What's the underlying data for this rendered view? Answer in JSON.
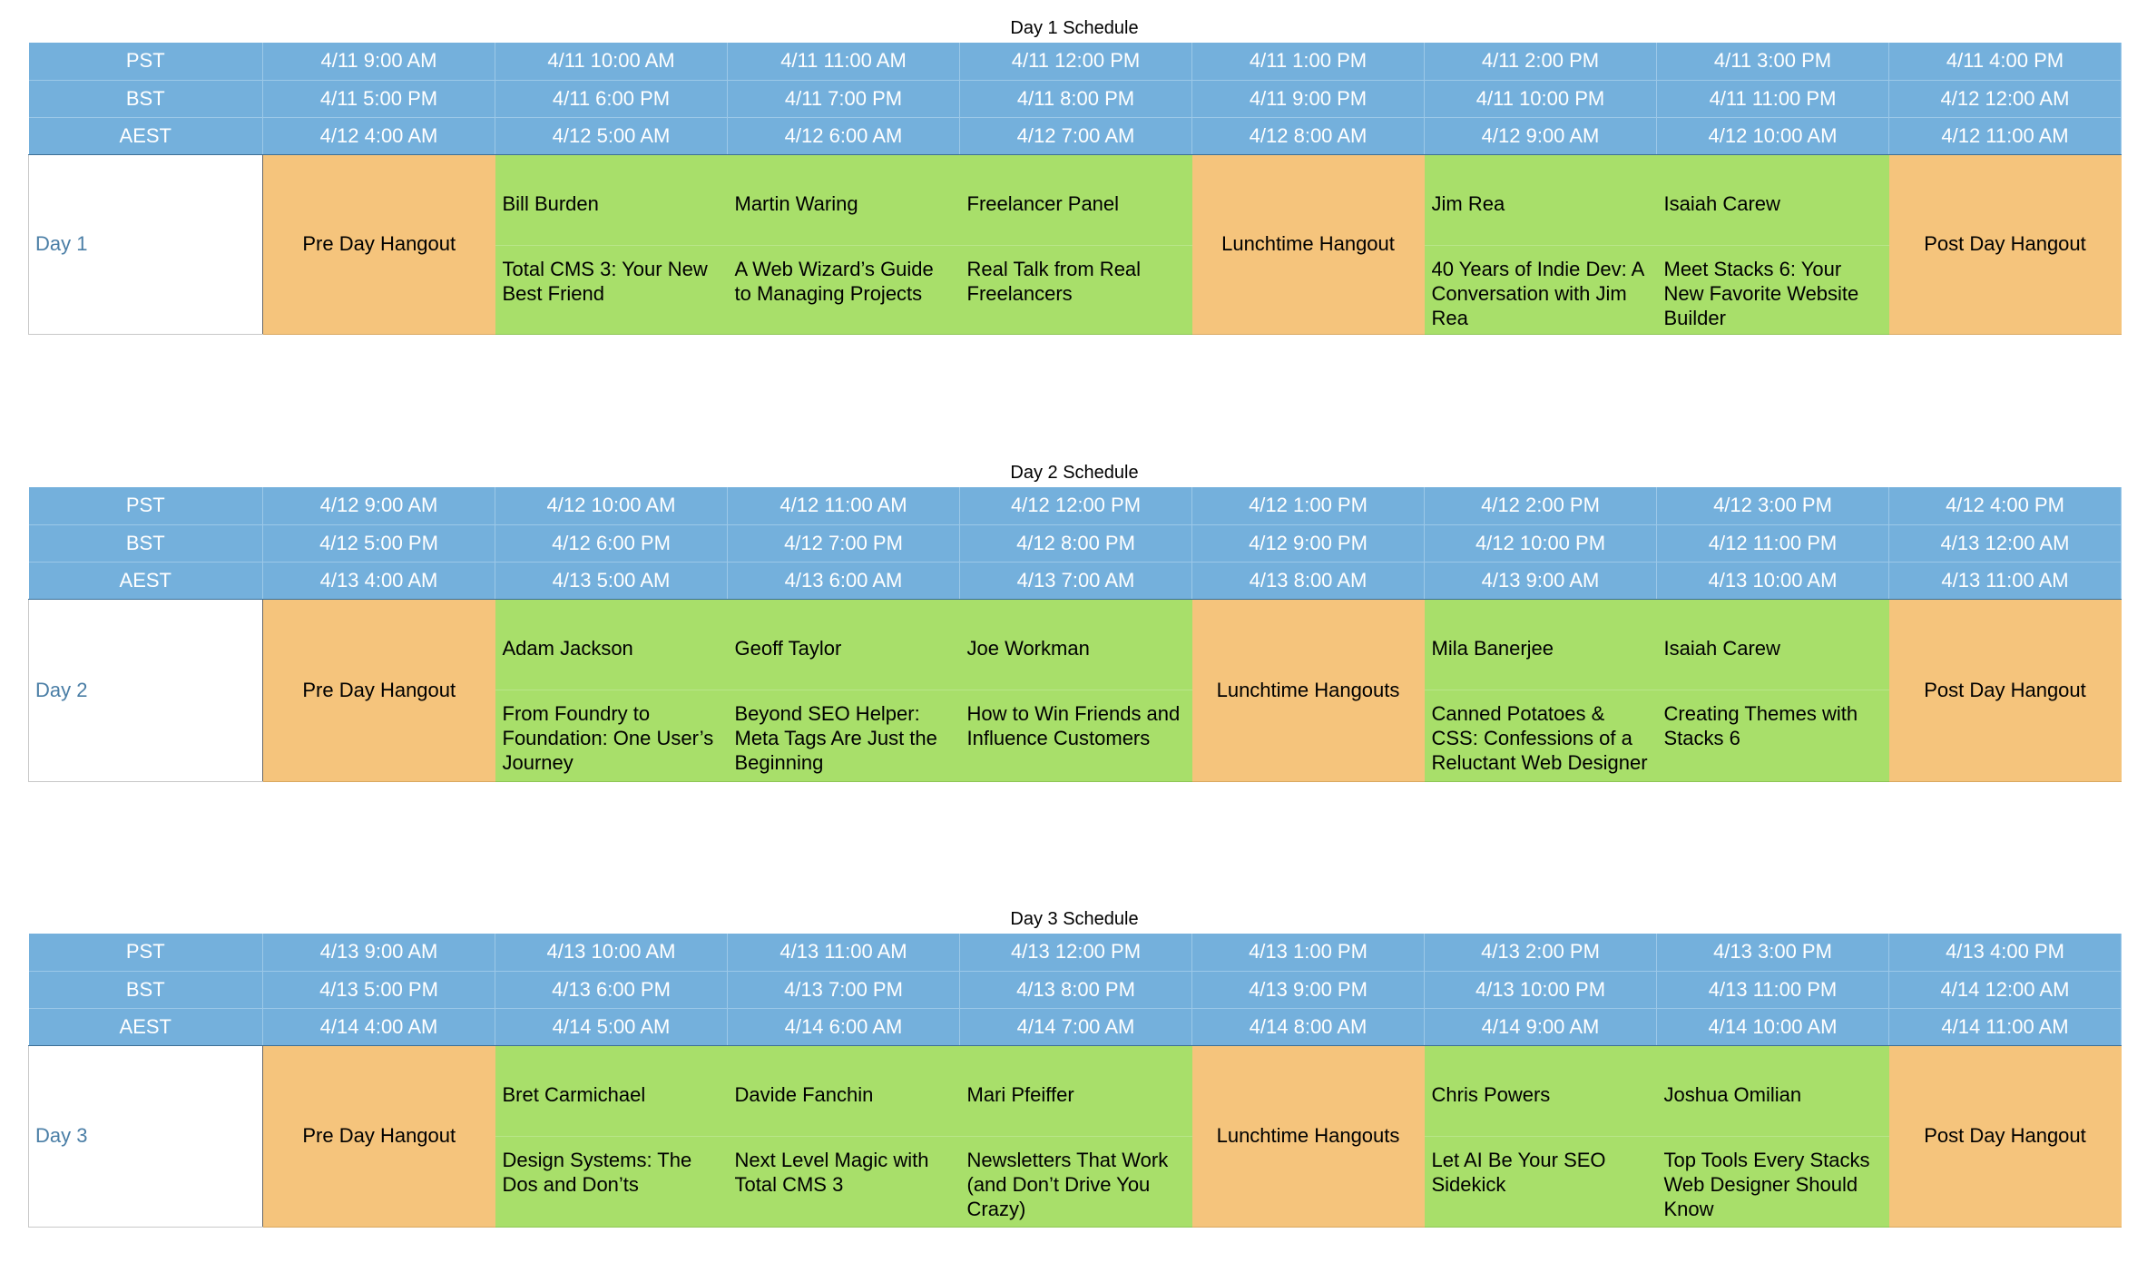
{
  "days": [
    {
      "title": "Day 1 Schedule",
      "label": "Day 1",
      "pst": [
        "PST",
        "4/11 9:00 AM",
        "4/11 10:00 AM",
        "4/11 11:00 AM",
        "4/11 12:00 PM",
        "4/11 1:00 PM",
        "4/11 2:00 PM",
        "4/11 3:00 PM",
        "4/11 4:00 PM"
      ],
      "bst": [
        "BST",
        "4/11 5:00 PM",
        "4/11 6:00 PM",
        "4/11 7:00 PM",
        "4/11 8:00 PM",
        "4/11 9:00 PM",
        "4/11 10:00 PM",
        "4/11 11:00 PM",
        "4/12 12:00 AM"
      ],
      "aest": [
        "AEST",
        "4/12 4:00 AM",
        "4/12 5:00 AM",
        "4/12 6:00 AM",
        "4/12 7:00 AM",
        "4/12 8:00 AM",
        "4/12 9:00 AM",
        "4/12 10:00 AM",
        "4/12 11:00 AM"
      ],
      "slots": [
        {
          "hangout": "Pre Day Hangout"
        },
        {
          "speaker": "Bill Burden",
          "talk": "Total CMS 3: Your New Best Friend"
        },
        {
          "speaker": "Martin Waring",
          "talk": "A Web Wizard’s Guide to Managing Projects"
        },
        {
          "speaker": "Freelancer Panel",
          "talk": "Real Talk from Real Freelancers"
        },
        {
          "hangout": "Lunchtime Hangout"
        },
        {
          "speaker": "Jim Rea",
          "talk": "40 Years of Indie Dev: A Conversation with Jim Rea"
        },
        {
          "speaker": "Isaiah Carew",
          "talk": "Meet Stacks 6: Your New Favorite Website Builder"
        },
        {
          "hangout": "Post Day Hangout"
        }
      ]
    },
    {
      "title": "Day 2 Schedule",
      "label": "Day 2",
      "pst": [
        "PST",
        "4/12 9:00 AM",
        "4/12 10:00 AM",
        "4/12 11:00 AM",
        "4/12 12:00 PM",
        "4/12 1:00 PM",
        "4/12 2:00 PM",
        "4/12 3:00 PM",
        "4/12 4:00 PM"
      ],
      "bst": [
        "BST",
        "4/12 5:00 PM",
        "4/12 6:00 PM",
        "4/12 7:00 PM",
        "4/12 8:00 PM",
        "4/12 9:00 PM",
        "4/12 10:00 PM",
        "4/12 11:00 PM",
        "4/13 12:00 AM"
      ],
      "aest": [
        "AEST",
        "4/13 4:00 AM",
        "4/13 5:00 AM",
        "4/13 6:00 AM",
        "4/13 7:00 AM",
        "4/13 8:00 AM",
        "4/13 9:00 AM",
        "4/13 10:00 AM",
        "4/13 11:00 AM"
      ],
      "slots": [
        {
          "hangout": "Pre Day Hangout"
        },
        {
          "speaker": "Adam Jackson",
          "talk": "From Foundry to Foundation: One User’s Journey"
        },
        {
          "speaker": "Geoff Taylor",
          "talk": "Beyond SEO Helper: Meta Tags Are Just the Beginning"
        },
        {
          "speaker": "Joe Workman",
          "talk": "How to Win Friends and Influence Customers"
        },
        {
          "hangout": "Lunchtime Hangouts"
        },
        {
          "speaker": "Mila Banerjee",
          "talk": "Canned Potatoes & CSS: Confessions of a Reluctant Web Designer"
        },
        {
          "speaker": "Isaiah Carew",
          "talk": "Creating Themes with Stacks 6"
        },
        {
          "hangout": "Post Day Hangout"
        }
      ]
    },
    {
      "title": "Day 3 Schedule",
      "label": "Day 3",
      "pst": [
        "PST",
        "4/13 9:00 AM",
        "4/13 10:00 AM",
        "4/13 11:00 AM",
        "4/13 12:00 PM",
        "4/13 1:00 PM",
        "4/13 2:00 PM",
        "4/13 3:00 PM",
        "4/13 4:00 PM"
      ],
      "bst": [
        "BST",
        "4/13 5:00 PM",
        "4/13 6:00 PM",
        "4/13 7:00 PM",
        "4/13 8:00 PM",
        "4/13 9:00 PM",
        "4/13 10:00 PM",
        "4/13 11:00 PM",
        "4/14 12:00 AM"
      ],
      "aest": [
        "AEST",
        "4/14 4:00 AM",
        "4/14 5:00 AM",
        "4/14 6:00 AM",
        "4/14 7:00 AM",
        "4/14 8:00 AM",
        "4/14 9:00 AM",
        "4/14 10:00 AM",
        "4/14 11:00 AM"
      ],
      "slots": [
        {
          "hangout": "Pre Day Hangout"
        },
        {
          "speaker": "Bret Carmichael",
          "talk": "Design Systems: The Dos and Don’ts"
        },
        {
          "speaker": "Davide Fanchin",
          "talk": "Next Level Magic with Total CMS 3"
        },
        {
          "speaker": "Mari Pfeiffer",
          "talk": "Newsletters That Work (and Don’t Drive You Crazy)"
        },
        {
          "hangout": "Lunchtime Hangouts"
        },
        {
          "speaker": "Chris Powers",
          "talk": "Let AI Be Your SEO Sidekick"
        },
        {
          "speaker": "Joshua Omilian",
          "talk": "Top Tools Every Stacks Web Designer Should Know"
        },
        {
          "hangout": "Post Day Hangout"
        }
      ]
    }
  ],
  "colors": {
    "header_blue": "#74b0dc",
    "hangout_orange": "#f5c47c",
    "session_green": "#a8df6a",
    "day_label_blue": "#4a7ea6"
  }
}
